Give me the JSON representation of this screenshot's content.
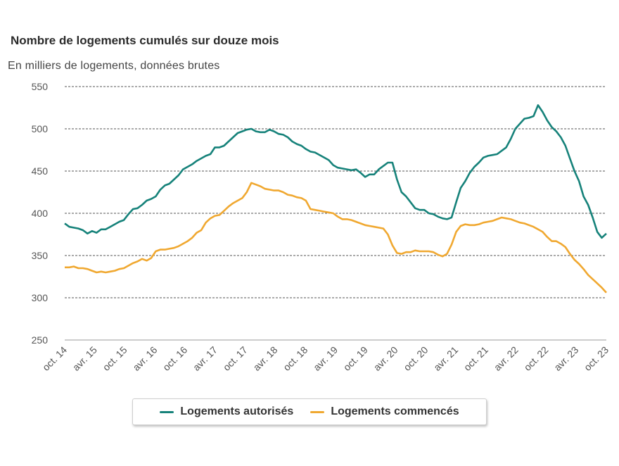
{
  "chart_data": {
    "type": "line",
    "title": "Nombre de logements cumulés sur douze mois",
    "subtitle": "En milliers de logements, données brutes",
    "ylim": [
      250,
      550
    ],
    "y_ticks": [
      550,
      500,
      450,
      400,
      350,
      300,
      250
    ],
    "x_tick_labels": [
      "oct. 14",
      "avr. 15",
      "oct. 15",
      "avr. 16",
      "oct. 16",
      "avr. 17",
      "oct. 17",
      "avr. 18",
      "oct. 18",
      "avr. 19",
      "oct. 19",
      "avr. 20",
      "oct. 20",
      "avr. 21",
      "oct. 21",
      "avr. 22",
      "oct. 22",
      "avr. 23",
      "oct. 23"
    ],
    "x_start": "2014-10",
    "x_end": "2023-10",
    "grid": "horizontal dashed",
    "legend_position": "bottom",
    "series": [
      {
        "name": "Logements autorisés",
        "color": "#16827a",
        "values": [
          388,
          384,
          383,
          382,
          380,
          376,
          379,
          377,
          381,
          381,
          384,
          387,
          390,
          392,
          399,
          405,
          406,
          410,
          415,
          417,
          420,
          428,
          433,
          435,
          440,
          445,
          452,
          455,
          458,
          462,
          465,
          468,
          470,
          478,
          478,
          480,
          485,
          490,
          495,
          497,
          499,
          500,
          497,
          496,
          496,
          499,
          497,
          494,
          493,
          490,
          485,
          482,
          480,
          476,
          473,
          472,
          469,
          466,
          463,
          457,
          454,
          453,
          452,
          451,
          452,
          448,
          443,
          446,
          446,
          452,
          456,
          460,
          460,
          440,
          425,
          420,
          413,
          406,
          404,
          404,
          400,
          399,
          396,
          394,
          393,
          395,
          413,
          430,
          438,
          448,
          455,
          460,
          466,
          468,
          469,
          470,
          474,
          478,
          488,
          500,
          506,
          512,
          513,
          515,
          528,
          520,
          510,
          502,
          497,
          490,
          480,
          465,
          450,
          438,
          420,
          410,
          395,
          378,
          371,
          376
        ]
      },
      {
        "name": "Logements commencés",
        "color": "#f0a830",
        "values": [
          336,
          336,
          337,
          335,
          335,
          334,
          332,
          330,
          331,
          330,
          331,
          332,
          334,
          335,
          338,
          341,
          343,
          346,
          344,
          347,
          355,
          357,
          357,
          358,
          359,
          361,
          364,
          367,
          371,
          377,
          380,
          389,
          394,
          397,
          398,
          403,
          408,
          412,
          415,
          418,
          425,
          436,
          434,
          432,
          429,
          428,
          427,
          427,
          425,
          422,
          421,
          419,
          418,
          415,
          405,
          404,
          403,
          402,
          401,
          400,
          396,
          393,
          393,
          392,
          390,
          388,
          386,
          385,
          384,
          383,
          382,
          375,
          362,
          353,
          352,
          354,
          354,
          356,
          355,
          355,
          355,
          354,
          351,
          349,
          352,
          363,
          378,
          385,
          387,
          386,
          386,
          387,
          389,
          390,
          391,
          393,
          395,
          394,
          393,
          391,
          389,
          388,
          386,
          384,
          381,
          378,
          372,
          367,
          367,
          364,
          360,
          352,
          345,
          340,
          334,
          327,
          322,
          317,
          312,
          306
        ]
      }
    ]
  }
}
